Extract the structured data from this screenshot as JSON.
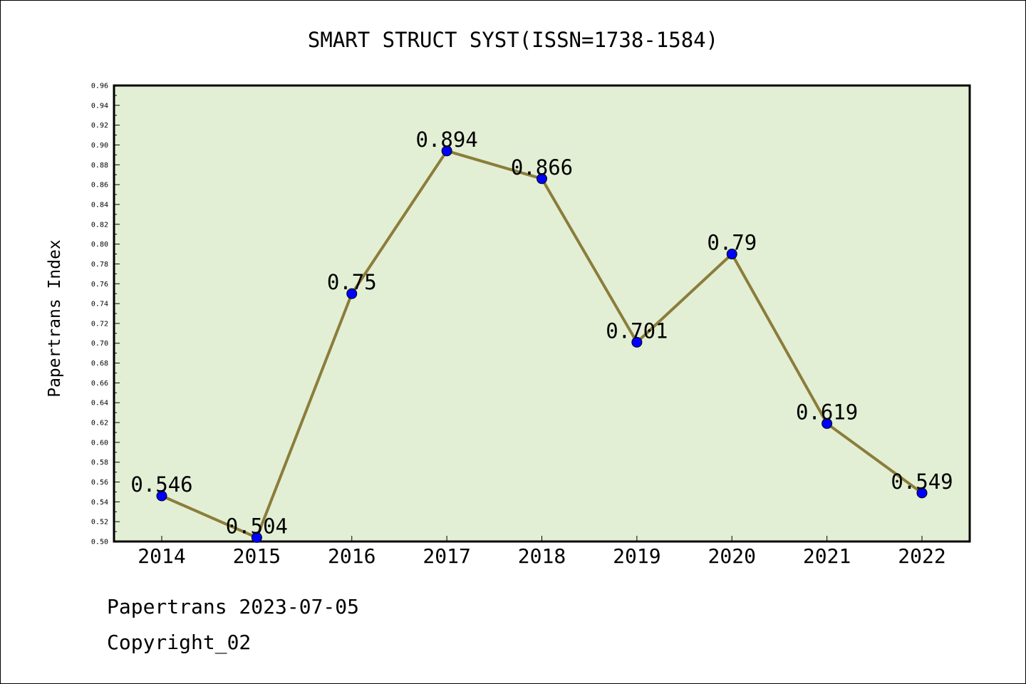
{
  "chart_data": {
    "type": "line",
    "title": "SMART STRUCT SYST(ISSN=1738-1584)",
    "xlabel": "",
    "ylabel": "Papertrans Index",
    "categories": [
      "2014",
      "2015",
      "2016",
      "2017",
      "2018",
      "2019",
      "2020",
      "2021",
      "2022"
    ],
    "series": [
      {
        "values": [
          0.546,
          0.504,
          0.75,
          0.894,
          0.866,
          0.701,
          0.79,
          0.619,
          0.549
        ],
        "labels": [
          "0.546",
          "0.504",
          "0.75",
          "0.894",
          "0.866",
          "0.701",
          "0.79",
          "0.619",
          "0.549"
        ]
      }
    ],
    "ylim": [
      0.5,
      0.96
    ],
    "yticks": [
      "0.50",
      "0.52",
      "0.54",
      "0.56",
      "0.58",
      "0.60",
      "0.62",
      "0.64",
      "0.66",
      "0.68",
      "0.70",
      "0.72",
      "0.74",
      "0.76",
      "0.78",
      "0.80",
      "0.82",
      "0.84",
      "0.86",
      "0.88",
      "0.90",
      "0.92",
      "0.94",
      "0.96"
    ],
    "grid": false,
    "colors": {
      "plot_background": "#e2efd5",
      "line": "#8b7d3a",
      "marker": "#0000ff"
    }
  },
  "footer": {
    "line1": "Papertrans 2023-07-05",
    "line2": "Copyright_02"
  }
}
